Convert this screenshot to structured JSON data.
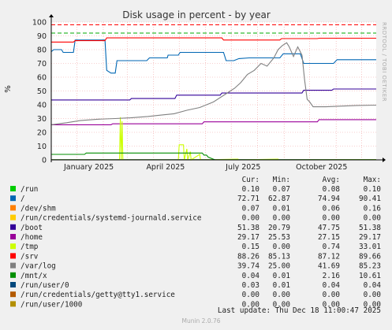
{
  "page": {
    "watermark": "RRDTOOL / TOBI OETIKER",
    "footer": "Munin 2.0.76",
    "last_update": "Last update: Thu Dec 18 11:00:47 2025"
  },
  "chart_data": {
    "type": "line",
    "title": "Disk usage in percent - by year",
    "ylabel": "%",
    "ylim": [
      0,
      100
    ],
    "yticks": [
      0,
      10,
      20,
      30,
      40,
      50,
      60,
      70,
      80,
      90,
      100
    ],
    "xlim": [
      "2024-12-02",
      "2025-12-18"
    ],
    "xticks": [
      {
        "label": "January 2025",
        "date": "2025-01-15"
      },
      {
        "label": "April 2025",
        "date": "2025-04-15"
      },
      {
        "label": "July 2025",
        "date": "2025-07-15"
      },
      {
        "label": "October 2025",
        "date": "2025-10-15"
      }
    ],
    "month_lines": [
      "2025-01-01",
      "2025-02-01",
      "2025-03-01",
      "2025-04-01",
      "2025-05-01",
      "2025-06-01",
      "2025-07-01",
      "2025-08-01",
      "2025-09-01",
      "2025-10-01",
      "2025-11-01",
      "2025-12-01"
    ],
    "warning_line": 92,
    "warning_color": "#00aa00",
    "critical_line": 98,
    "critical_color": "#ff0000",
    "columns": [
      "Cur:",
      "Min:",
      "Avg:",
      "Max:"
    ],
    "series": [
      {
        "name": "/run",
        "color": "#00cc00",
        "cur": "0.10",
        "min": "0.07",
        "avg": "0.08",
        "max": "0.10",
        "points": [
          [
            "2024-12-02",
            0.1
          ],
          [
            "2025-12-18",
            0.1
          ]
        ]
      },
      {
        "name": "/",
        "color": "#0066b3",
        "cur": "72.71",
        "min": "62.87",
        "avg": "74.94",
        "max": "90.41",
        "points": [
          [
            "2024-12-02",
            78.5
          ],
          [
            "2024-12-05",
            80
          ],
          [
            "2024-12-14",
            80
          ],
          [
            "2024-12-16",
            78
          ],
          [
            "2024-12-28",
            78
          ],
          [
            "2024-12-30",
            87
          ],
          [
            "2025-02-03",
            87
          ],
          [
            "2025-02-05",
            65
          ],
          [
            "2025-02-10",
            63
          ],
          [
            "2025-02-15",
            63
          ],
          [
            "2025-02-17",
            72
          ],
          [
            "2025-03-24",
            72
          ],
          [
            "2025-03-27",
            74
          ],
          [
            "2025-04-17",
            74
          ],
          [
            "2025-04-18",
            76
          ],
          [
            "2025-04-30",
            76
          ],
          [
            "2025-05-02",
            78
          ],
          [
            "2025-06-22",
            78
          ],
          [
            "2025-06-25",
            72
          ],
          [
            "2025-07-04",
            72
          ],
          [
            "2025-07-10",
            73.5
          ],
          [
            "2025-07-22",
            74
          ],
          [
            "2025-08-27",
            74
          ],
          [
            "2025-08-31",
            77
          ],
          [
            "2025-09-20",
            77
          ],
          [
            "2025-09-24",
            70
          ],
          [
            "2025-10-29",
            70
          ],
          [
            "2025-11-02",
            72.7
          ],
          [
            "2025-12-18",
            72.7
          ]
        ]
      },
      {
        "name": "/dev/shm",
        "color": "#ff8000",
        "cur": "0.07",
        "min": "0.01",
        "avg": "0.06",
        "max": "0.16",
        "points": [
          [
            "2024-12-02",
            0.07
          ],
          [
            "2025-12-18",
            0.07
          ]
        ]
      },
      {
        "name": "/run/credentials/systemd-journald.service",
        "color": "#ffcc00",
        "cur": "0.00",
        "min": "0.00",
        "avg": "0.00",
        "max": "0.00",
        "points": [
          [
            "2024-12-02",
            0
          ],
          [
            "2025-12-18",
            0
          ]
        ]
      },
      {
        "name": "/boot",
        "color": "#330099",
        "cur": "51.38",
        "min": "20.79",
        "avg": "47.75",
        "max": "51.38",
        "points": [
          [
            "2024-12-02",
            43.5
          ],
          [
            "2025-03-04",
            43.5
          ],
          [
            "2025-03-06",
            44.5
          ],
          [
            "2025-04-26",
            44.5
          ],
          [
            "2025-04-28",
            47
          ],
          [
            "2025-06-18",
            47
          ],
          [
            "2025-06-20",
            48.5
          ],
          [
            "2025-09-22",
            48.5
          ],
          [
            "2025-09-24",
            50.5
          ],
          [
            "2025-10-27",
            50.5
          ],
          [
            "2025-10-29",
            51.4
          ],
          [
            "2025-12-18",
            51.4
          ]
        ]
      },
      {
        "name": "/home",
        "color": "#990099",
        "cur": "29.17",
        "min": "25.53",
        "avg": "27.15",
        "max": "29.17",
        "points": [
          [
            "2024-12-02",
            25.5
          ],
          [
            "2025-02-10",
            25.5
          ],
          [
            "2025-02-12",
            26.2
          ],
          [
            "2025-05-28",
            26.2
          ],
          [
            "2025-05-30",
            27.6
          ],
          [
            "2025-10-10",
            27.6
          ],
          [
            "2025-10-12",
            29.2
          ],
          [
            "2025-12-18",
            29.2
          ]
        ]
      },
      {
        "name": "/tmp",
        "color": "#ccff00",
        "cur": "0.15",
        "min": "0.00",
        "avg": "0.74",
        "max": "33.01",
        "points": [
          [
            "2024-12-02",
            0
          ],
          [
            "2025-02-20",
            0
          ],
          [
            "2025-02-21",
            31
          ],
          [
            "2025-02-22",
            0
          ],
          [
            "2025-02-23",
            28
          ],
          [
            "2025-02-24",
            0
          ],
          [
            "2025-04-30",
            0
          ],
          [
            "2025-05-01",
            11
          ],
          [
            "2025-05-06",
            11
          ],
          [
            "2025-05-07",
            0
          ],
          [
            "2025-05-10",
            8
          ],
          [
            "2025-05-11",
            0
          ],
          [
            "2025-05-14",
            6
          ],
          [
            "2025-05-15",
            0
          ],
          [
            "2025-05-25",
            4
          ],
          [
            "2025-05-26",
            0
          ],
          [
            "2025-07-09",
            0.5
          ],
          [
            "2025-07-10",
            0
          ],
          [
            "2025-08-25",
            0.5
          ],
          [
            "2025-08-26",
            0
          ],
          [
            "2025-12-18",
            0.15
          ]
        ]
      },
      {
        "name": "/srv",
        "color": "#ff0000",
        "cur": "88.26",
        "min": "85.13",
        "avg": "87.12",
        "max": "89.66",
        "points": [
          [
            "2024-12-02",
            85.5
          ],
          [
            "2024-12-28",
            85.5
          ],
          [
            "2024-12-30",
            86.5
          ],
          [
            "2025-02-03",
            86.5
          ],
          [
            "2025-02-05",
            88.5
          ],
          [
            "2025-06-20",
            88.5
          ],
          [
            "2025-06-22",
            87
          ],
          [
            "2025-08-27",
            87
          ],
          [
            "2025-08-29",
            88
          ],
          [
            "2025-10-10",
            88
          ],
          [
            "2025-10-12",
            88.3
          ],
          [
            "2025-12-18",
            88.3
          ]
        ]
      },
      {
        "name": "/var/log",
        "color": "#808080",
        "cur": "39.74",
        "min": "25.00",
        "avg": "41.69",
        "max": "85.23",
        "points": [
          [
            "2024-12-02",
            25.5
          ],
          [
            "2024-12-20",
            27
          ],
          [
            "2025-01-05",
            28.5
          ],
          [
            "2025-01-25",
            29.5
          ],
          [
            "2025-02-15",
            30
          ],
          [
            "2025-03-05",
            30.5
          ],
          [
            "2025-03-25",
            31.5
          ],
          [
            "2025-04-10",
            32.5
          ],
          [
            "2025-04-25",
            33.5
          ],
          [
            "2025-05-10",
            36
          ],
          [
            "2025-05-25",
            38
          ],
          [
            "2025-06-10",
            42
          ],
          [
            "2025-06-25",
            48
          ],
          [
            "2025-07-05",
            52
          ],
          [
            "2025-07-12",
            56
          ],
          [
            "2025-07-20",
            62
          ],
          [
            "2025-07-28",
            65
          ],
          [
            "2025-08-05",
            70
          ],
          [
            "2025-08-12",
            68
          ],
          [
            "2025-08-20",
            74
          ],
          [
            "2025-08-25",
            80
          ],
          [
            "2025-08-30",
            83
          ],
          [
            "2025-09-04",
            85
          ],
          [
            "2025-09-07",
            82
          ],
          [
            "2025-09-12",
            75
          ],
          [
            "2025-09-17",
            82
          ],
          [
            "2025-09-22",
            76
          ],
          [
            "2025-09-25",
            58
          ],
          [
            "2025-09-28",
            44
          ],
          [
            "2025-10-01",
            42
          ],
          [
            "2025-10-05",
            38.5
          ],
          [
            "2025-10-20",
            38.5
          ],
          [
            "2025-11-05",
            39
          ],
          [
            "2025-11-25",
            39.5
          ],
          [
            "2025-12-18",
            39.7
          ]
        ]
      },
      {
        "name": "/mnt/x",
        "color": "#008f00",
        "cur": "0.04",
        "min": "0.01",
        "avg": "2.16",
        "max": "10.61",
        "points": [
          [
            "2024-12-02",
            4
          ],
          [
            "2025-01-10",
            4
          ],
          [
            "2025-01-12",
            5
          ],
          [
            "2025-05-28",
            5
          ],
          [
            "2025-05-30",
            3.5
          ],
          [
            "2025-06-02",
            3.5
          ],
          [
            "2025-06-04",
            2
          ],
          [
            "2025-06-10",
            0.5
          ],
          [
            "2025-06-12",
            0.04
          ],
          [
            "2025-12-18",
            0.04
          ]
        ]
      },
      {
        "name": "/run/user/0",
        "color": "#00487d",
        "cur": "0.03",
        "min": "0.01",
        "avg": "0.04",
        "max": "0.04",
        "points": [
          [
            "2024-12-02",
            0.03
          ],
          [
            "2025-12-18",
            0.03
          ]
        ]
      },
      {
        "name": "/run/credentials/getty@tty1.service",
        "color": "#b35a00",
        "cur": "0.00",
        "min": "0.00",
        "avg": "0.00",
        "max": "0.00",
        "points": [
          [
            "2024-12-02",
            0
          ],
          [
            "2025-12-18",
            0
          ]
        ]
      },
      {
        "name": "/run/user/1000",
        "color": "#b38f00",
        "cur": "0.00",
        "min": "0.00",
        "avg": "0.00",
        "max": "0.00",
        "points": [
          [
            "2024-12-02",
            0
          ],
          [
            "2025-12-18",
            0
          ]
        ]
      }
    ]
  }
}
